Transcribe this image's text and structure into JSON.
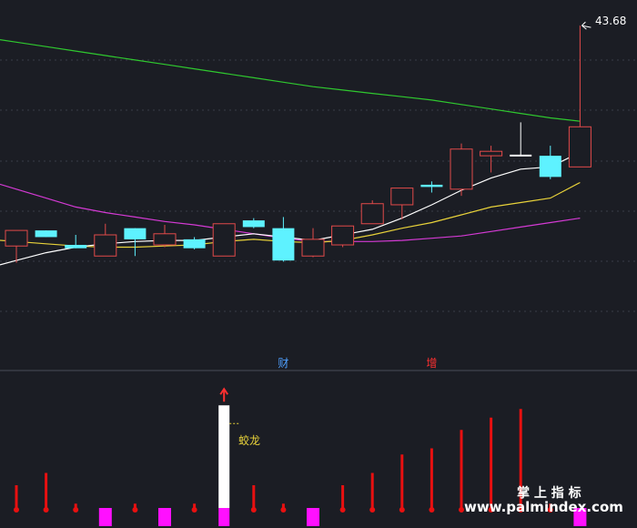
{
  "chart_data": {
    "type": "candlestick",
    "price_range": [
      18.2,
      45.0
    ],
    "high_label": "43.68",
    "colors": {
      "up": "#e24a4a",
      "down": "#5ef2ff",
      "ma_white": "#ffffff",
      "ma_yellow": "#e8d23a",
      "ma_magenta": "#d43ad4",
      "ma_green": "#2fc82f",
      "volume_red": "#e81010",
      "volume_magenta": "#ff10ff",
      "volume_white": "#ffffff",
      "marker_blue": "#4fa0ff",
      "marker_red": "#ff3030",
      "label_yellow": "#e8d23a"
    },
    "candles": [
      {
        "o": 23.9,
        "c": 25.3,
        "h": 25.3,
        "l": 22.4,
        "dir": "up"
      },
      {
        "o": 25.3,
        "c": 24.7,
        "h": 25.3,
        "l": 24.7,
        "dir": "down"
      },
      {
        "o": 24.0,
        "c": 23.7,
        "h": 24.9,
        "l": 23.7,
        "dir": "down"
      },
      {
        "o": 23.0,
        "c": 24.9,
        "h": 25.9,
        "l": 23.0,
        "dir": "up"
      },
      {
        "o": 25.5,
        "c": 24.5,
        "h": 25.5,
        "l": 23.0,
        "dir": "down"
      },
      {
        "o": 24.0,
        "c": 25.0,
        "h": 25.8,
        "l": 23.8,
        "dir": "up"
      },
      {
        "o": 24.5,
        "c": 23.7,
        "h": 24.7,
        "l": 23.6,
        "dir": "down"
      },
      {
        "o": 23.0,
        "c": 25.9,
        "h": 25.9,
        "l": 23.0,
        "dir": "up"
      },
      {
        "o": 26.2,
        "c": 25.6,
        "h": 26.4,
        "l": 25.5,
        "dir": "down"
      },
      {
        "o": 25.5,
        "c": 22.6,
        "h": 26.5,
        "l": 22.5,
        "dir": "down"
      },
      {
        "o": 23.0,
        "c": 24.5,
        "h": 25.5,
        "l": 22.9,
        "dir": "up"
      },
      {
        "o": 24.0,
        "c": 25.7,
        "h": 25.7,
        "l": 23.8,
        "dir": "up"
      },
      {
        "o": 25.9,
        "c": 27.7,
        "h": 28.0,
        "l": 25.9,
        "dir": "up"
      },
      {
        "o": 27.6,
        "c": 29.1,
        "h": 29.1,
        "l": 26.3,
        "dir": "up"
      },
      {
        "o": 29.4,
        "c": 29.2,
        "h": 29.7,
        "l": 28.7,
        "dir": "down"
      },
      {
        "o": 29.0,
        "c": 32.6,
        "h": 33.1,
        "l": 28.4,
        "dir": "up"
      },
      {
        "o": 32.0,
        "c": 32.4,
        "h": 32.9,
        "l": 30.5,
        "dir": "up"
      },
      {
        "o": 32.1,
        "c": 32.1,
        "h": 35.0,
        "l": 32.0,
        "dir": "down"
      },
      {
        "o": 32.0,
        "c": 30.1,
        "h": 32.9,
        "l": 29.9,
        "dir": "down"
      },
      {
        "o": 31.0,
        "c": 34.6,
        "h": 43.68,
        "l": 31.0,
        "dir": "up"
      }
    ],
    "ma_white": [
      22.6,
      23.3,
      23.8,
      24.1,
      24.3,
      24.4,
      24.4,
      24.7,
      25.0,
      24.7,
      24.4,
      24.9,
      25.4,
      26.4,
      27.6,
      28.9,
      30.0,
      30.8,
      31.0,
      32.3
    ],
    "ma_yellow": [
      24.3,
      24.1,
      23.9,
      23.8,
      23.8,
      23.9,
      24.0,
      24.3,
      24.5,
      24.3,
      24.2,
      24.4,
      24.9,
      25.5,
      26.0,
      26.7,
      27.4,
      27.8,
      28.2,
      29.6
    ],
    "ma_magenta": [
      29.0,
      28.2,
      27.4,
      26.9,
      26.5,
      26.1,
      25.8,
      25.4,
      25.0,
      24.6,
      24.3,
      24.3,
      24.3,
      24.4,
      24.6,
      24.8,
      25.2,
      25.6,
      26.0,
      26.4
    ],
    "ma_green": [
      42.2,
      41.8,
      41.4,
      41.0,
      40.6,
      40.2,
      39.8,
      39.4,
      39.0,
      38.6,
      38.2,
      37.9,
      37.6,
      37.3,
      37.0,
      36.6,
      36.2,
      35.8,
      35.4,
      35.1
    ],
    "volume": [
      {
        "v": 0.2,
        "c": "red"
      },
      {
        "v": 0.3,
        "c": "red"
      },
      {
        "v": 0.05,
        "c": "red"
      },
      {
        "v": 0.15,
        "c": "magenta"
      },
      {
        "v": 0.05,
        "c": "red"
      },
      {
        "v": 0.15,
        "c": "magenta"
      },
      {
        "v": 0.05,
        "c": "red"
      },
      {
        "v": 0.85,
        "c": "white"
      },
      {
        "v": 0.2,
        "c": "red"
      },
      {
        "v": 0.05,
        "c": "red"
      },
      {
        "v": 0.15,
        "c": "magenta"
      },
      {
        "v": 0.2,
        "c": "red"
      },
      {
        "v": 0.3,
        "c": "red"
      },
      {
        "v": 0.45,
        "c": "red"
      },
      {
        "v": 0.5,
        "c": "red"
      },
      {
        "v": 0.65,
        "c": "red"
      },
      {
        "v": 0.75,
        "c": "red"
      },
      {
        "v": 0.82,
        "c": "red"
      },
      {
        "v": 0.05,
        "c": "red"
      },
      {
        "v": 0.15,
        "c": "magenta"
      }
    ],
    "markers": [
      {
        "index": 9,
        "text": "财",
        "color": "blue"
      },
      {
        "index": 14,
        "text": "增",
        "color": "red"
      }
    ],
    "volume_label": {
      "index": 7,
      "text": "蛟龙"
    },
    "watermark_top": "掌 上 指 标",
    "watermark_bottom": "www.palmindex.com"
  }
}
